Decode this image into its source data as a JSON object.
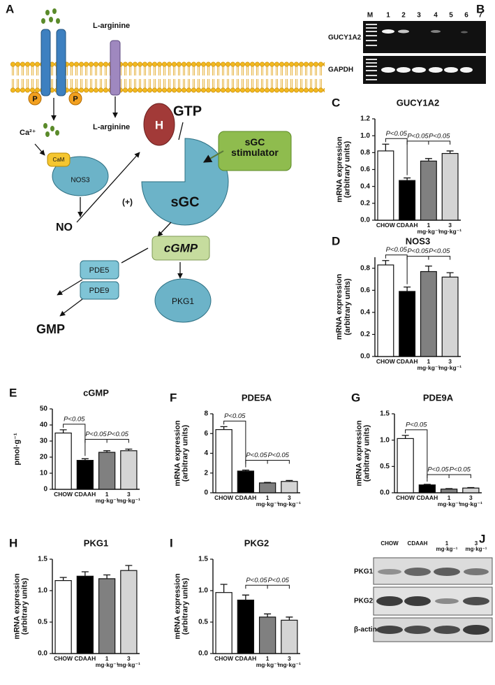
{
  "diagram": {
    "panel": "A",
    "l_arginine_1": "L-arginine",
    "p_1": "P",
    "p_2": "P",
    "ca": "Ca²⁺",
    "l_arginine_2": "L-arginine",
    "cam": "CaM",
    "nos3": "NOS3",
    "no": "NO",
    "plus": "(+)",
    "gtp": "GTP",
    "h": "H",
    "sgc": "sGC",
    "stimulator": "sGC\nstimulator",
    "cgmp": "cGMP",
    "pde5": "PDE5",
    "pde9": "PDE9",
    "gmp": "GMP",
    "pkg1": "PKG1"
  },
  "gel": {
    "panel": "B",
    "lanes": [
      "M",
      "1",
      "2",
      "3",
      "4",
      "5",
      "6",
      "7"
    ],
    "rows": [
      "GUCY1A2",
      "GAPDH"
    ]
  },
  "blot": {
    "panel": "J",
    "lanes": [
      "CHOW",
      "CDAAH",
      "1\nmg·kg⁻¹",
      "3\nmg·kg⁻¹"
    ],
    "rows": [
      "PKG1",
      "PKG2",
      "β-actin"
    ]
  },
  "chart_data": [
    {
      "type": "bar",
      "panel": "C",
      "title": "GUCY1A2",
      "ylabel": "mRNA expression\n(arbitrary units)",
      "categories": [
        "CHOW",
        "CDAAH",
        "1\nmg·kg⁻¹",
        "3\nmg·kg⁻¹"
      ],
      "values": [
        0.82,
        0.47,
        0.7,
        0.79
      ],
      "errors": [
        0.08,
        0.03,
        0.03,
        0.03
      ],
      "colors": [
        "#ffffff",
        "#000000",
        "#808080",
        "#d4d4d4"
      ],
      "ylim": [
        0,
        1.2
      ],
      "yticks": [
        {
          "value": 0,
          "label": "0.0"
        },
        0.2,
        0.4,
        0.6,
        0.8,
        {
          "value": 1,
          "label": "1.0"
        },
        1.2
      ],
      "annotations": [
        "P<0.05",
        "P<0.05",
        "P<0.05"
      ]
    },
    {
      "type": "bar",
      "panel": "D",
      "title": "NOS3",
      "ylabel": "mRNA expression\n(arbitrary units)",
      "categories": [
        "CHOW",
        "CDAAH",
        "1\nmg·kg⁻¹",
        "3\nmg·kg⁻¹"
      ],
      "values": [
        0.83,
        0.59,
        0.77,
        0.72
      ],
      "errors": [
        0.04,
        0.04,
        0.05,
        0.04
      ],
      "colors": [
        "#ffffff",
        "#000000",
        "#808080",
        "#d4d4d4"
      ],
      "ylim": [
        0,
        0.9
      ],
      "yticks": [
        {
          "value": 0,
          "label": "0.0"
        },
        0.2,
        0.4,
        0.6,
        0.8
      ],
      "annotations": [
        "P<0.05",
        "P<0.05",
        "P<0.05"
      ]
    },
    {
      "type": "bar",
      "panel": "E",
      "title": "cGMP",
      "ylabel": "pmol·g⁻¹",
      "categories": [
        "CHOW",
        "CDAAH",
        "1\nmg·kg⁻¹",
        "3\nmg·kg⁻¹"
      ],
      "values": [
        35,
        18,
        23,
        24
      ],
      "errors": [
        2,
        1,
        1,
        1
      ],
      "colors": [
        "#ffffff",
        "#000000",
        "#808080",
        "#d4d4d4"
      ],
      "ylim": [
        0,
        50
      ],
      "yticks": [
        0,
        10,
        20,
        30,
        40,
        50
      ],
      "annotations": [
        "P<0.05",
        "P<0.05",
        "P<0.05"
      ]
    },
    {
      "type": "bar",
      "panel": "F",
      "title": "PDE5A",
      "ylabel": "mRNA expression\n(arbitrary units)",
      "categories": [
        "CHOW",
        "CDAAH",
        "1\nmg·kg⁻¹",
        "3\nmg·kg⁻¹"
      ],
      "values": [
        6.4,
        2.2,
        1.0,
        1.15
      ],
      "errors": [
        0.3,
        0.1,
        0.05,
        0.1
      ],
      "colors": [
        "#ffffff",
        "#000000",
        "#808080",
        "#d4d4d4"
      ],
      "ylim": [
        0,
        8
      ],
      "yticks": [
        0,
        2,
        4,
        6,
        8
      ],
      "annotations": [
        "P<0.05",
        "P<0.05",
        "P<0.05"
      ]
    },
    {
      "type": "bar",
      "panel": "G",
      "title": "PDE9A",
      "ylabel": "mRNA expression\n(arbitrary units)",
      "categories": [
        "CHOW",
        "CDAAH",
        "1\nmg·kg⁻¹",
        "3\nmg·kg⁻¹"
      ],
      "values": [
        1.03,
        0.15,
        0.07,
        0.09
      ],
      "errors": [
        0.06,
        0.01,
        0.01,
        0.01
      ],
      "colors": [
        "#ffffff",
        "#000000",
        "#808080",
        "#d4d4d4"
      ],
      "ylim": [
        0,
        1.5
      ],
      "yticks": [
        {
          "value": 0,
          "label": "0.0"
        },
        0.5,
        {
          "value": 1,
          "label": "1.0"
        },
        1.5
      ],
      "annotations": [
        "P<0.05",
        "P<0.05",
        "P<0.05"
      ]
    },
    {
      "type": "bar",
      "panel": "H",
      "title": "PKG1",
      "ylabel": "mRNA expression\n(arbitrary units)",
      "categories": [
        "CHOW",
        "CDAAH",
        "1\nmg·kg⁻¹",
        "3\nmg·kg⁻¹"
      ],
      "values": [
        1.16,
        1.23,
        1.19,
        1.32
      ],
      "errors": [
        0.05,
        0.07,
        0.06,
        0.08
      ],
      "colors": [
        "#ffffff",
        "#000000",
        "#808080",
        "#d4d4d4"
      ],
      "ylim": [
        0,
        1.5
      ],
      "yticks": [
        {
          "value": 0,
          "label": "0.0"
        },
        0.5,
        {
          "value": 1,
          "label": "1.0"
        },
        1.5
      ],
      "annotations": []
    },
    {
      "type": "bar",
      "panel": "I",
      "title": "PKG2",
      "ylabel": "mRNA expression\n(arbitrary units)",
      "categories": [
        "CHOW",
        "CDAAH",
        "1\nmg·kg⁻¹",
        "3\nmg·kg⁻¹"
      ],
      "values": [
        0.97,
        0.85,
        0.58,
        0.53
      ],
      "errors": [
        0.13,
        0.08,
        0.05,
        0.05
      ],
      "colors": [
        "#ffffff",
        "#000000",
        "#808080",
        "#d4d4d4"
      ],
      "ylim": [
        0,
        1.5
      ],
      "yticks": [
        {
          "value": 0,
          "label": "0.0"
        },
        0.5,
        {
          "value": 1,
          "label": "1.0"
        },
        1.5
      ],
      "annotations": [
        "P<0.05",
        "P<0.05"
      ]
    }
  ]
}
